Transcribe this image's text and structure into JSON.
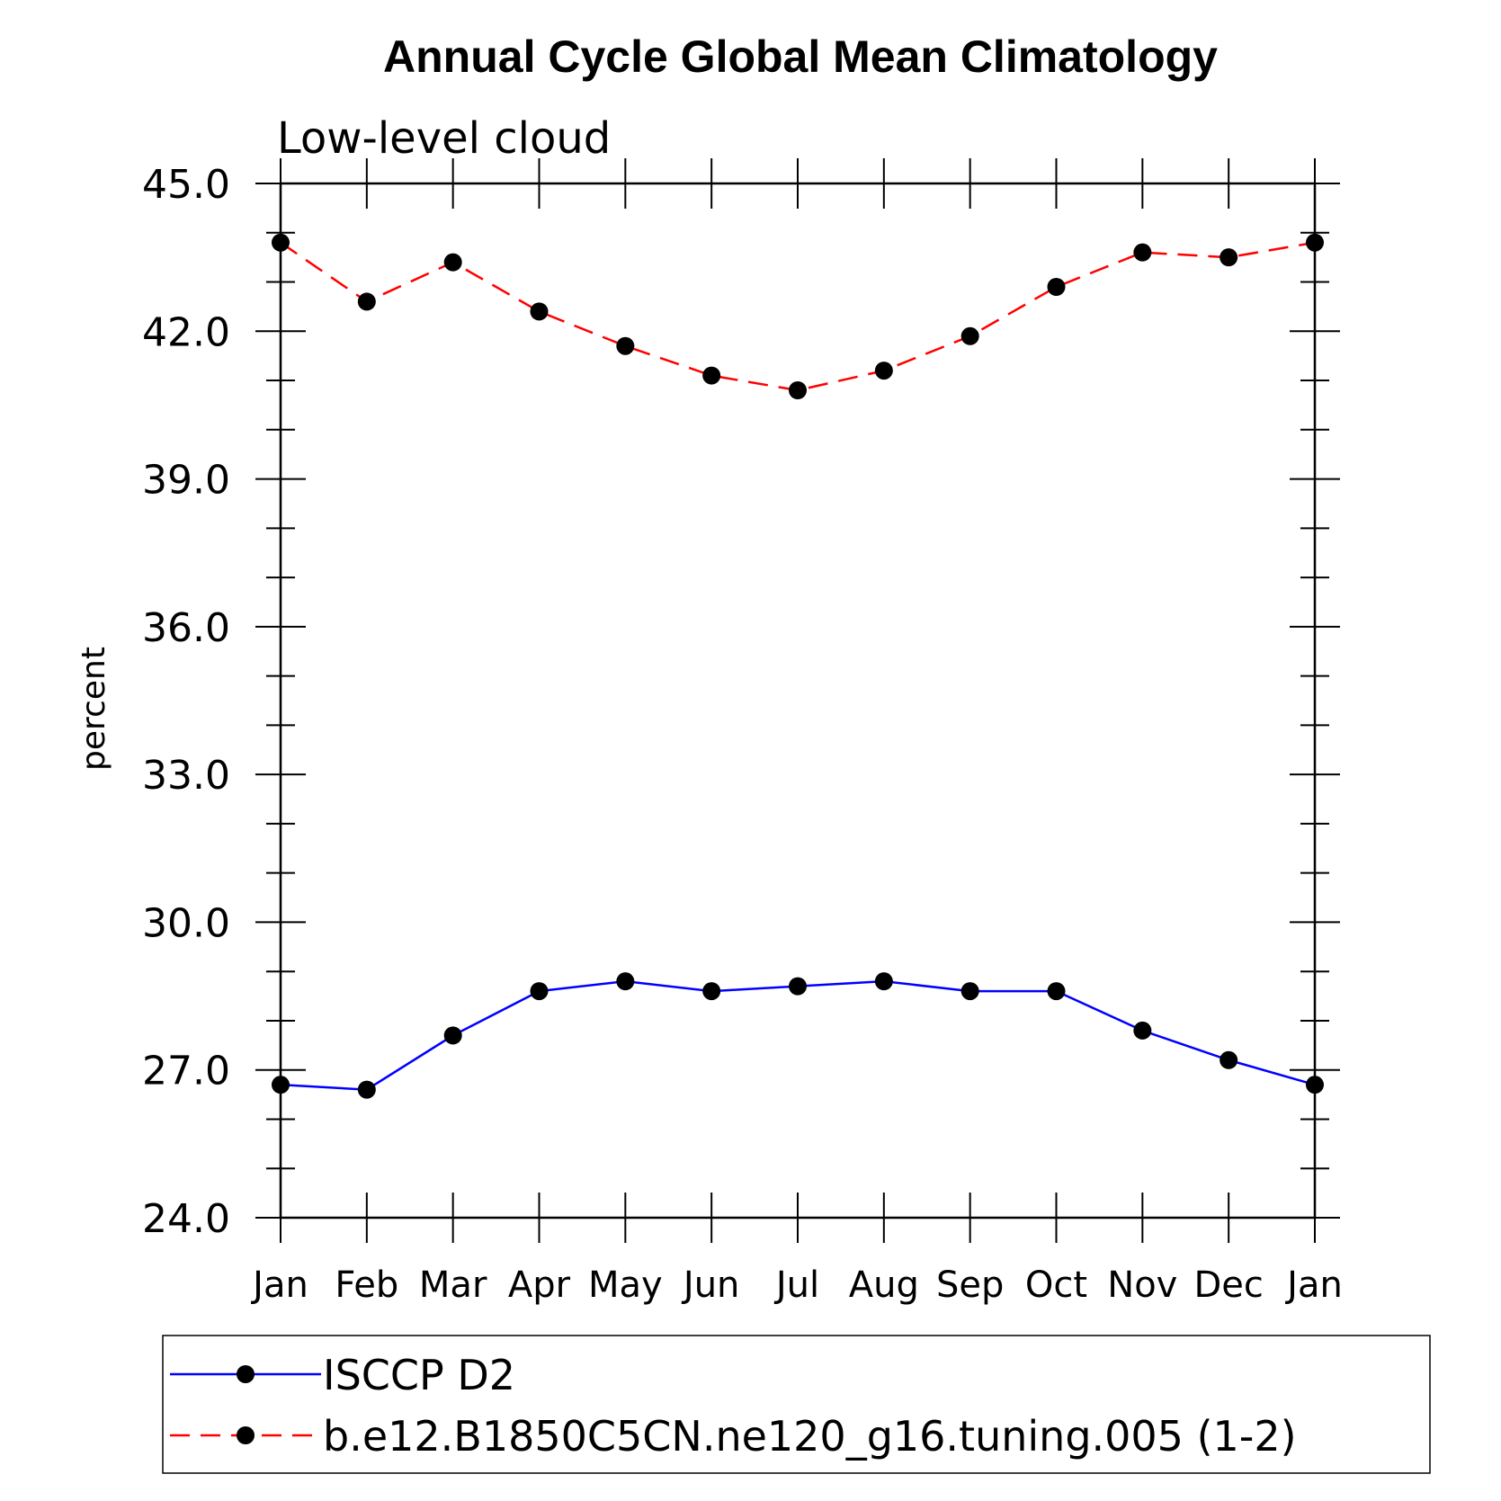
{
  "chart_data": {
    "type": "line",
    "title": "Annual Cycle Global Mean Climatology",
    "subtitle": "Low-level cloud",
    "xlabel": "",
    "ylabel": "percent",
    "ylim": [
      24.0,
      45.0
    ],
    "yticks": [
      "24.0",
      "27.0",
      "30.0",
      "33.0",
      "36.0",
      "39.0",
      "42.0",
      "45.0"
    ],
    "categories": [
      "Jan",
      "Feb",
      "Mar",
      "Apr",
      "May",
      "Jun",
      "Jul",
      "Aug",
      "Sep",
      "Oct",
      "Nov",
      "Dec",
      "Jan"
    ],
    "grid": false,
    "legend_position": "bottom",
    "series": [
      {
        "name": "ISCCP D2",
        "color": "#0000ff",
        "style": "solid",
        "values": [
          26.7,
          26.6,
          27.7,
          28.6,
          28.8,
          28.6,
          28.7,
          28.8,
          28.6,
          28.6,
          27.8,
          27.2,
          26.7
        ]
      },
      {
        "name": "b.e12.B1850C5CN.ne120_g16.tuning.005 (1-2)",
        "color": "#ff0000",
        "style": "dashed",
        "values": [
          43.8,
          42.6,
          43.4,
          42.4,
          41.7,
          41.1,
          40.8,
          41.2,
          41.9,
          42.9,
          43.6,
          43.5,
          43.8
        ]
      }
    ]
  }
}
